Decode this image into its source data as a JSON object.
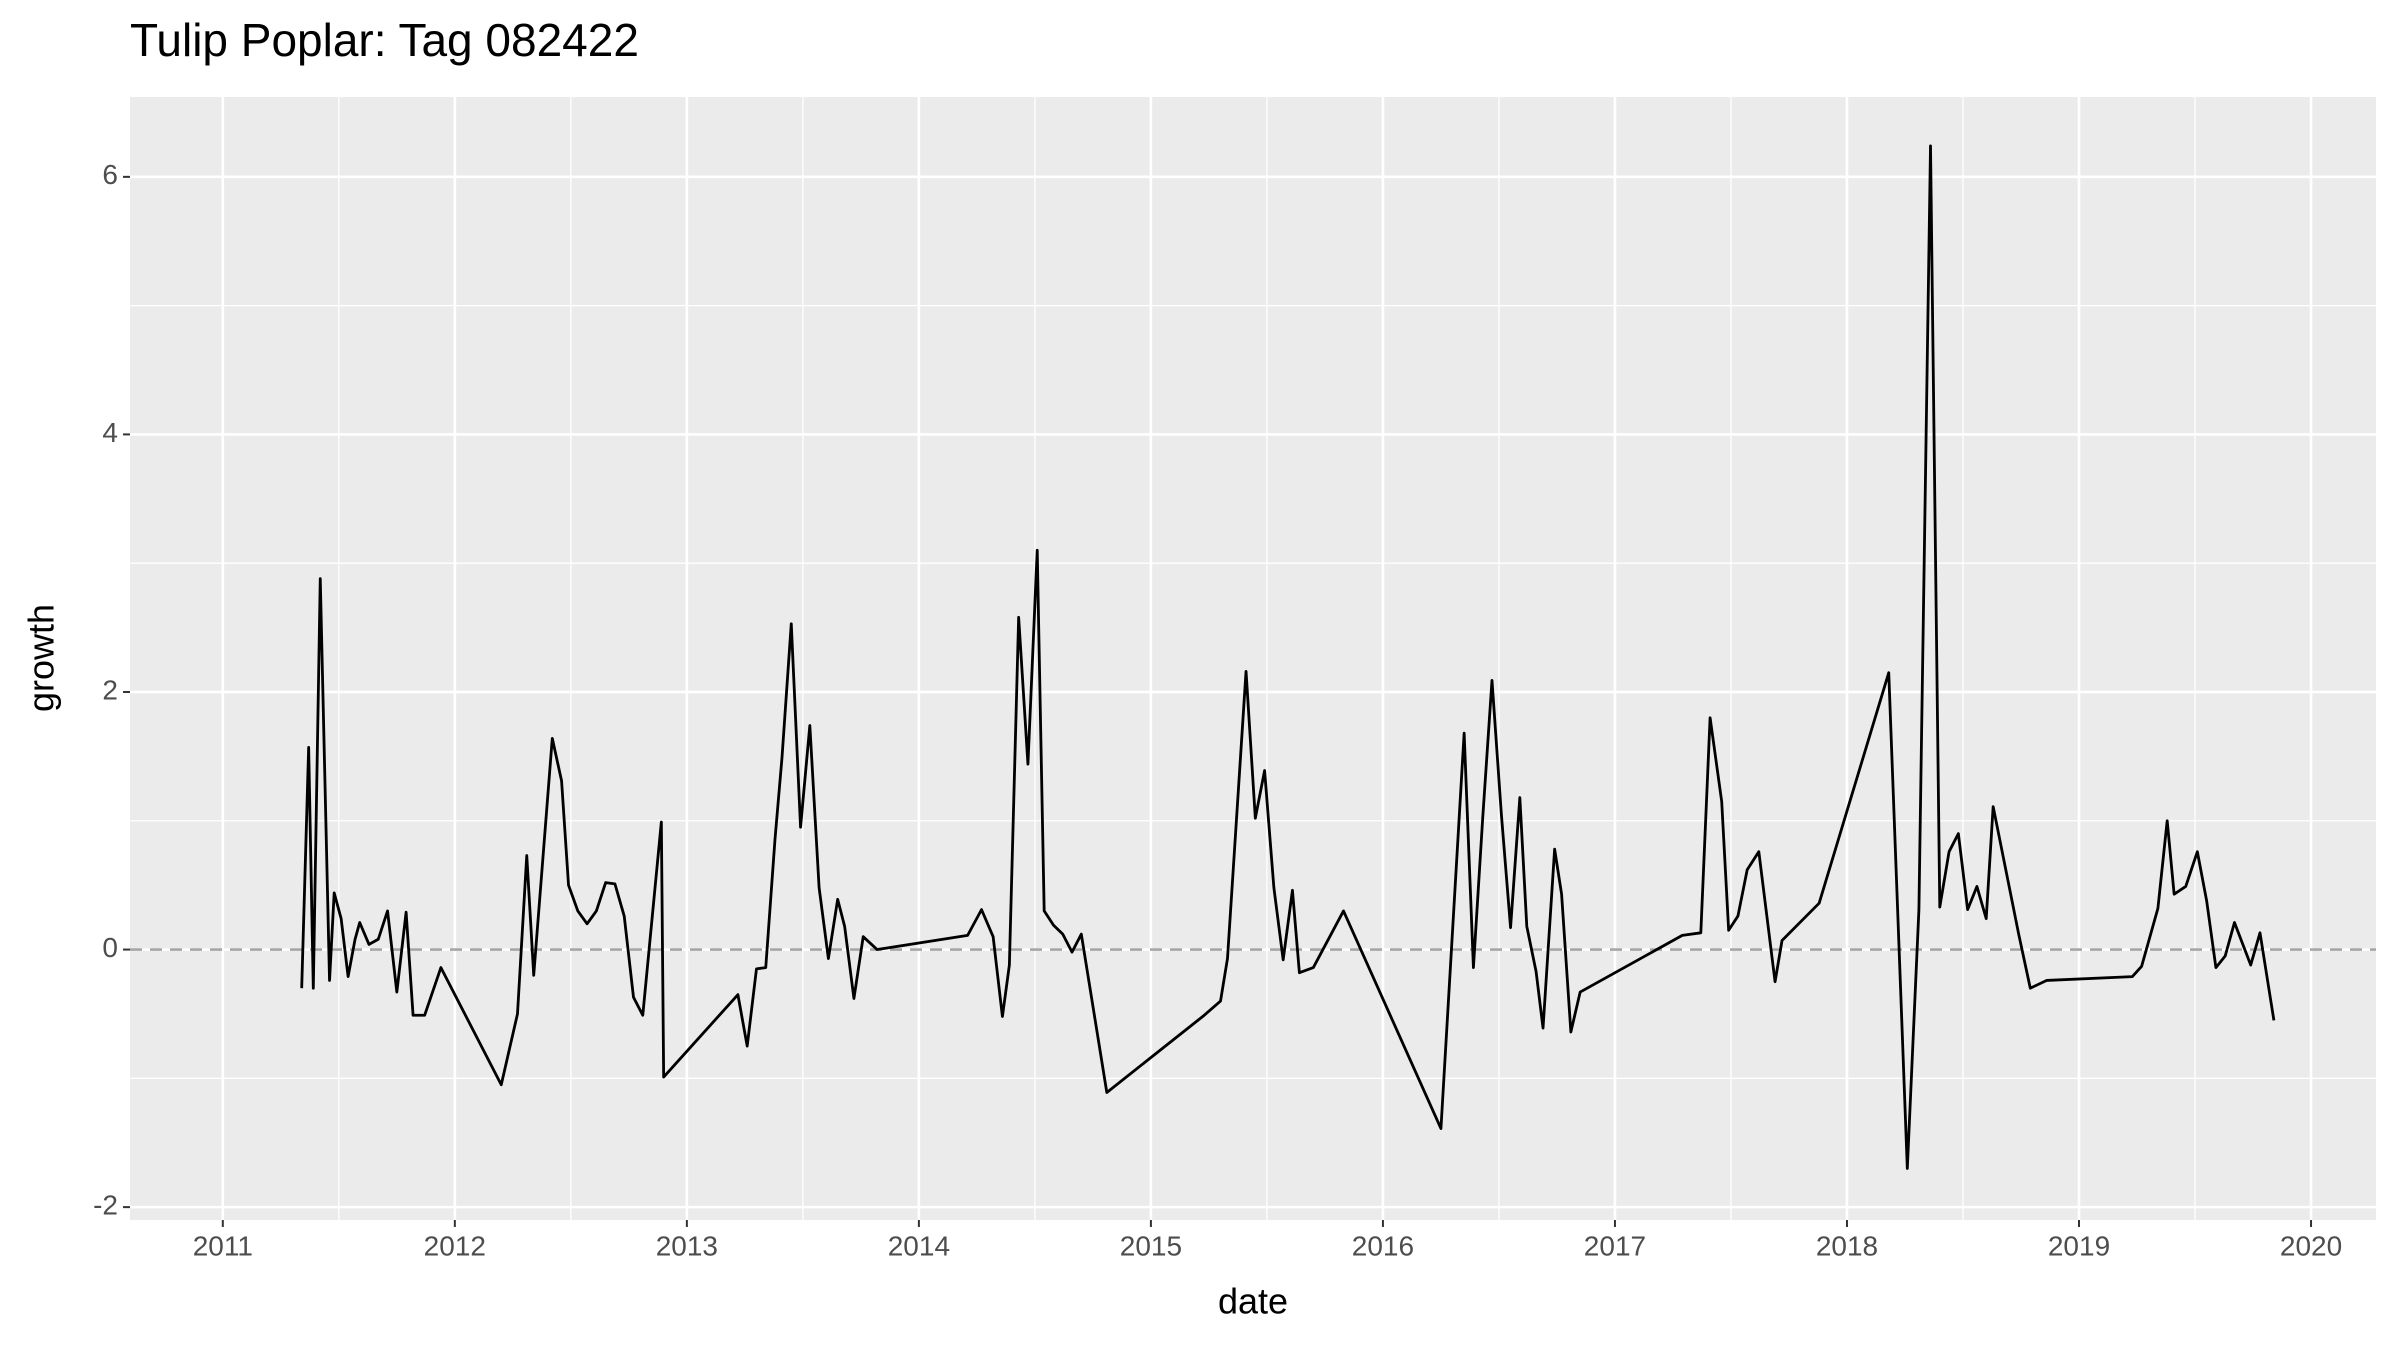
{
  "chart_data": {
    "type": "line",
    "title": "Tulip Poplar: Tag 082422",
    "x_label": "date",
    "y_label": "growth",
    "x": [
      2011.34,
      2011.37,
      2011.39,
      2011.42,
      2011.46,
      2011.48,
      2011.51,
      2011.54,
      2011.57,
      2011.59,
      2011.63,
      2011.67,
      2011.71,
      2011.75,
      2011.79,
      2011.82,
      2011.87,
      2011.94,
      2012.2,
      2012.27,
      2012.31,
      2012.34,
      2012.42,
      2012.46,
      2012.49,
      2012.53,
      2012.57,
      2012.61,
      2012.65,
      2012.69,
      2012.73,
      2012.77,
      2012.81,
      2012.89,
      2012.9,
      2013.22,
      2013.26,
      2013.3,
      2013.34,
      2013.38,
      2013.41,
      2013.45,
      2013.49,
      2013.53,
      2013.57,
      2013.61,
      2013.65,
      2013.68,
      2013.72,
      2013.76,
      2013.82,
      2014.21,
      2014.27,
      2014.32,
      2014.36,
      2014.39,
      2014.43,
      2014.47,
      2014.51,
      2014.54,
      2014.58,
      2014.62,
      2014.66,
      2014.7,
      2014.81,
      2015.23,
      2015.3,
      2015.33,
      2015.41,
      2015.45,
      2015.49,
      2015.53,
      2015.57,
      2015.61,
      2015.64,
      2015.7,
      2015.83,
      2016.25,
      2016.35,
      2016.39,
      2016.43,
      2016.47,
      2016.51,
      2016.55,
      2016.59,
      2016.62,
      2016.66,
      2016.69,
      2016.74,
      2016.77,
      2016.81,
      2016.85,
      2017.29,
      2017.37,
      2017.41,
      2017.46,
      2017.49,
      2017.53,
      2017.57,
      2017.62,
      2017.69,
      2017.72,
      2017.88,
      2018.18,
      2018.26,
      2018.31,
      2018.36,
      2018.4,
      2018.44,
      2018.48,
      2018.52,
      2018.56,
      2018.6,
      2018.63,
      2018.74,
      2018.79,
      2018.86,
      2019.23,
      2019.27,
      2019.34,
      2019.38,
      2019.41,
      2019.46,
      2019.51,
      2019.55,
      2019.59,
      2019.63,
      2019.67,
      2019.74,
      2019.78,
      2019.84
    ],
    "values": [
      -0.3,
      1.57,
      -0.3,
      2.88,
      -0.24,
      0.44,
      0.24,
      -0.21,
      0.08,
      0.21,
      0.04,
      0.08,
      0.3,
      -0.33,
      0.29,
      -0.51,
      -0.51,
      -0.14,
      -1.05,
      -0.5,
      0.73,
      -0.2,
      1.64,
      1.31,
      0.5,
      0.3,
      0.2,
      0.3,
      0.52,
      0.51,
      0.26,
      -0.37,
      -0.51,
      0.99,
      -0.99,
      -0.35,
      -0.75,
      -0.15,
      -0.14,
      0.86,
      1.49,
      2.53,
      0.95,
      1.74,
      0.48,
      -0.07,
      0.39,
      0.18,
      -0.38,
      0.1,
      0.0,
      0.11,
      0.31,
      0.1,
      -0.52,
      -0.12,
      2.58,
      1.44,
      3.1,
      0.3,
      0.19,
      0.12,
      -0.02,
      0.12,
      -1.11,
      -0.51,
      -0.4,
      -0.07,
      2.16,
      1.02,
      1.39,
      0.48,
      -0.08,
      0.46,
      -0.18,
      -0.14,
      0.3,
      -1.39,
      1.68,
      -0.14,
      1.02,
      2.09,
      1.06,
      0.17,
      1.18,
      0.18,
      -0.17,
      -0.61,
      0.78,
      0.43,
      -0.64,
      -0.33,
      0.11,
      0.13,
      1.8,
      1.15,
      0.15,
      0.26,
      0.62,
      0.76,
      -0.25,
      0.07,
      0.36,
      2.15,
      -1.7,
      0.31,
      6.24,
      0.33,
      0.76,
      0.9,
      0.31,
      0.49,
      0.24,
      1.11,
      0.12,
      -0.3,
      -0.24,
      -0.21,
      -0.13,
      0.32,
      1.0,
      0.43,
      0.49,
      0.76,
      0.38,
      -0.14,
      -0.05,
      0.21,
      -0.12,
      0.13,
      -0.55
    ],
    "color": "#000000",
    "reference_line": 0,
    "xlim": [
      2010.6,
      2020.28
    ],
    "xticks": [
      2011,
      2012,
      2013,
      2014,
      2015,
      2016,
      2017,
      2018,
      2019,
      2020
    ],
    "ylim": [
      -2.1,
      6.62
    ],
    "yticks": [
      -2,
      0,
      2,
      4,
      6
    ],
    "grid": true
  }
}
